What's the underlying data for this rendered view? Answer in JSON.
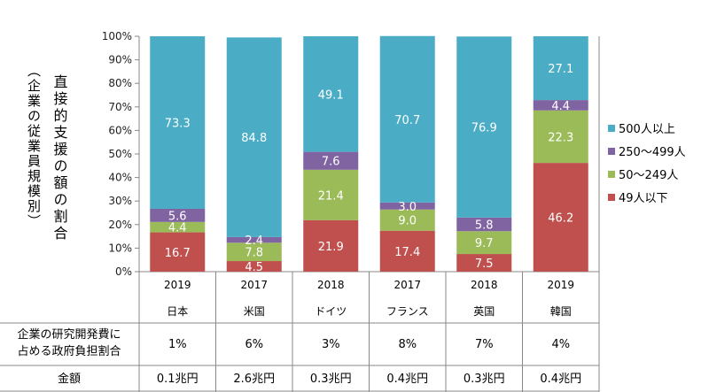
{
  "chart_data": {
    "type": "bar",
    "stacked": true,
    "title": "",
    "ylabel": "直接的支援の額の割合",
    "ylabel_sub": "（企業の従業員規模別）",
    "ylim": [
      0,
      100
    ],
    "yticks": [
      "0%",
      "10%",
      "20%",
      "30%",
      "40%",
      "50%",
      "60%",
      "70%",
      "80%",
      "90%",
      "100%"
    ],
    "categories": [
      "日本",
      "米国",
      "ドイツ",
      "フランス",
      "英国",
      "韓国"
    ],
    "years": [
      "2019",
      "2017",
      "2018",
      "2017",
      "2018",
      "2019"
    ],
    "series": [
      {
        "name": "49人以下",
        "color": "#c0504d",
        "values": [
          16.7,
          4.5,
          21.9,
          17.4,
          7.5,
          46.2
        ]
      },
      {
        "name": "50〜249人",
        "color": "#9bbb59",
        "values": [
          4.4,
          7.8,
          21.4,
          9.0,
          9.7,
          22.3
        ]
      },
      {
        "name": "250〜499人",
        "color": "#8064a2",
        "values": [
          5.6,
          2.4,
          7.6,
          3.0,
          5.8,
          4.4
        ]
      },
      {
        "name": "500人以上",
        "color": "#4bacc6",
        "values": [
          73.3,
          84.8,
          49.1,
          70.7,
          76.9,
          27.1
        ]
      }
    ],
    "value_labels": [
      [
        "16.7",
        "4.5",
        "21.9",
        "17.4",
        "7.5",
        "46.2"
      ],
      [
        "4.4",
        "7.8",
        "21.4",
        "9.0",
        "9.7",
        "22.3"
      ],
      [
        "5.6",
        "2.4",
        "7.6",
        "3.0",
        "5.8",
        "4.4"
      ],
      [
        "73.3",
        "84.8",
        "49.1",
        "70.7",
        "76.9",
        "27.1"
      ]
    ],
    "legend_order": [
      "500人以上",
      "250〜499人",
      "50〜249人",
      "49人以下"
    ],
    "legend_position": "right",
    "grid": false
  },
  "table": {
    "rows": [
      {
        "label_lines": [
          "企業の研究開発費に",
          "占める政府負担割合"
        ],
        "values": [
          "1%",
          "6%",
          "3%",
          "8%",
          "7%",
          "4%"
        ]
      },
      {
        "label_lines": [
          "金額"
        ],
        "values": [
          "0.1兆円",
          "2.6兆円",
          "0.3兆円",
          "0.4兆円",
          "0.3兆円",
          "0.4兆円"
        ]
      }
    ]
  }
}
